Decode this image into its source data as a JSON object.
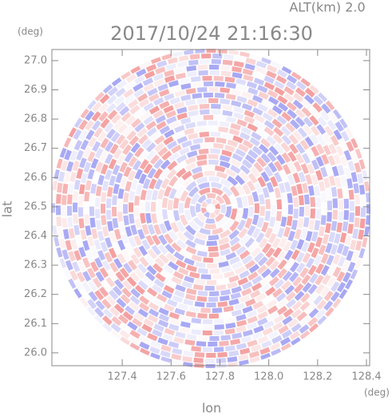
{
  "chart_data": {
    "type": "radar-ppi",
    "title": "2017/10/24 21:16:30",
    "subtitle": "ALT(km) 2.0",
    "x_label": "lon",
    "y_label": "lat",
    "x_unit": "(deg)",
    "y_unit": "(deg)",
    "xlim": [
      127.112,
      128.413
    ],
    "ylim": [
      25.956,
      27.038
    ],
    "xticks": [
      127.4,
      127.6,
      127.8,
      {
        "value": 128,
        "label": "128.0"
      },
      128.2,
      128.4
    ],
    "yticks": [
      {
        "value": 26,
        "label": "26.0"
      },
      26.1,
      26.2,
      26.3,
      26.4,
      26.5,
      26.6,
      26.7,
      26.8,
      26.9,
      {
        "value": 27,
        "label": "27.0"
      }
    ],
    "positive_color": "#f4a0a0",
    "negative_color": "#a8a8f4"
  }
}
